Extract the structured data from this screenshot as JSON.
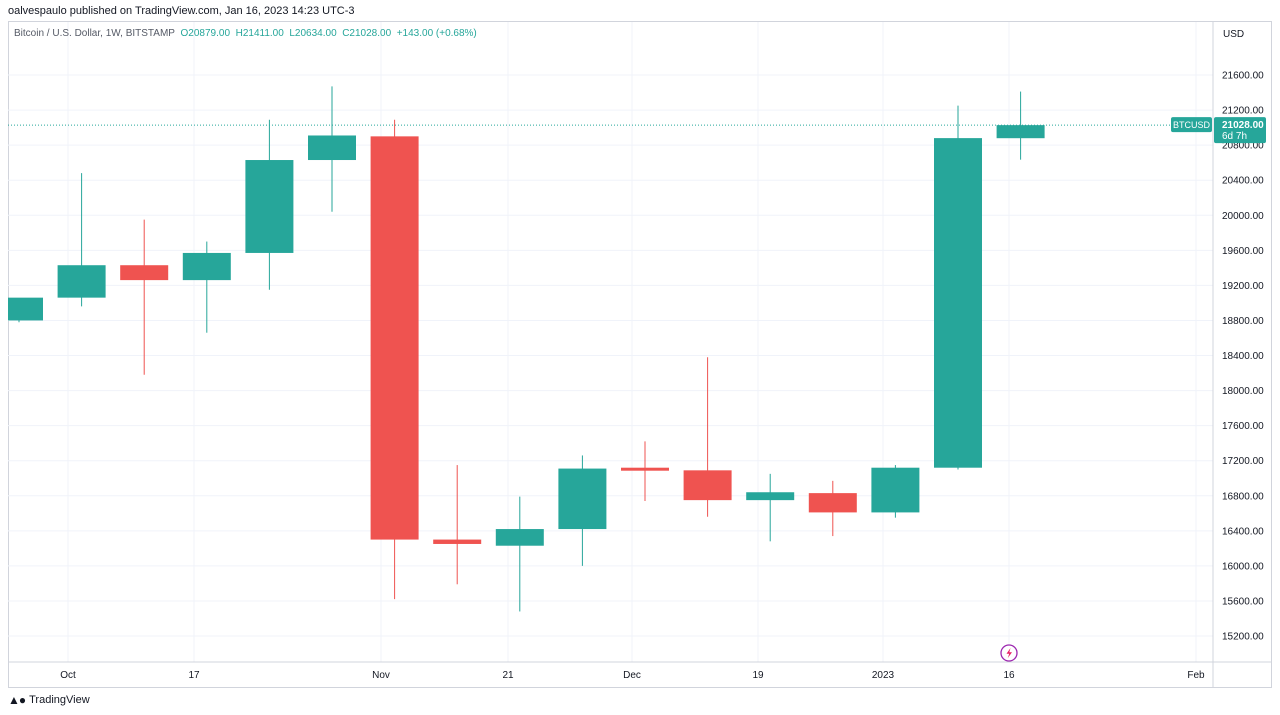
{
  "header": {
    "published": "oalvespaulo published on TradingView.com, Jan 16, 2023 14:23 UTC-3"
  },
  "legend": {
    "symbol": "Bitcoin / U.S. Dollar, 1W, BITSTAMP",
    "open": "O20879.00",
    "high": "H21411.00",
    "low": "L20634.00",
    "close": "C21028.00",
    "change": "+143.00 (+0.68%)"
  },
  "footer": {
    "brand": "TradingView"
  },
  "colors": {
    "up": "#26a69a",
    "down": "#ef5350",
    "grid": "#f0f3fa",
    "price_line": "#26a69a"
  },
  "chart_data": {
    "type": "candlestick",
    "currency_label": "USD",
    "ylim": [
      14900,
      21950
    ],
    "y_ticks": [
      "15200.00",
      "15600.00",
      "16000.00",
      "16400.00",
      "16800.00",
      "17200.00",
      "17600.00",
      "18000.00",
      "18400.00",
      "18800.00",
      "19200.00",
      "19600.00",
      "20000.00",
      "20400.00",
      "20800.00",
      "21200.00",
      "21600.00"
    ],
    "x_labels": [
      "Oct",
      "17",
      "Nov",
      "21",
      "Dec",
      "19",
      "2023",
      "16",
      "Feb"
    ],
    "last_price": {
      "symbol": "BTCUSD",
      "value": "21028.00",
      "countdown": "6d 7h"
    },
    "candles": [
      {
        "week": "2022-09-19",
        "open": 18800,
        "high": 19050,
        "low": 18780,
        "close": 19060
      },
      {
        "week": "2022-09-26",
        "open": 19060,
        "high": 20480,
        "low": 18960,
        "close": 19430
      },
      {
        "week": "2022-10-03",
        "open": 19430,
        "high": 19950,
        "low": 18180,
        "close": 19260
      },
      {
        "week": "2022-10-10",
        "open": 19260,
        "high": 19700,
        "low": 18660,
        "close": 19570
      },
      {
        "week": "2022-10-17",
        "open": 19570,
        "high": 21090,
        "low": 19150,
        "close": 20630
      },
      {
        "week": "2022-10-24",
        "open": 20630,
        "high": 21470,
        "low": 20040,
        "close": 20910
      },
      {
        "week": "2022-10-31",
        "open": 20900,
        "high": 21090,
        "low": 15620,
        "close": 16300
      },
      {
        "week": "2022-11-07",
        "open": 16300,
        "high": 17150,
        "low": 15790,
        "close": 16250
      },
      {
        "week": "2022-11-14",
        "open": 16230,
        "high": 16790,
        "low": 15480,
        "close": 16420
      },
      {
        "week": "2022-11-21",
        "open": 16420,
        "high": 17260,
        "low": 16000,
        "close": 17110
      },
      {
        "week": "2022-11-28",
        "open": 17120,
        "high": 17420,
        "low": 16740,
        "close": 17090
      },
      {
        "week": "2022-12-05",
        "open": 17090,
        "high": 18380,
        "low": 16560,
        "close": 16750
      },
      {
        "week": "2022-12-12",
        "open": 16750,
        "high": 17050,
        "low": 16280,
        "close": 16840
      },
      {
        "week": "2022-12-19",
        "open": 16830,
        "high": 16970,
        "low": 16340,
        "close": 16610
      },
      {
        "week": "2022-12-26",
        "open": 16610,
        "high": 17150,
        "low": 16550,
        "close": 17120
      },
      {
        "week": "2023-01-02",
        "open": 17120,
        "high": 21250,
        "low": 17100,
        "close": 20880
      },
      {
        "week": "2023-01-09",
        "open": 20879,
        "high": 21411,
        "low": 20634,
        "close": 21028
      }
    ]
  }
}
